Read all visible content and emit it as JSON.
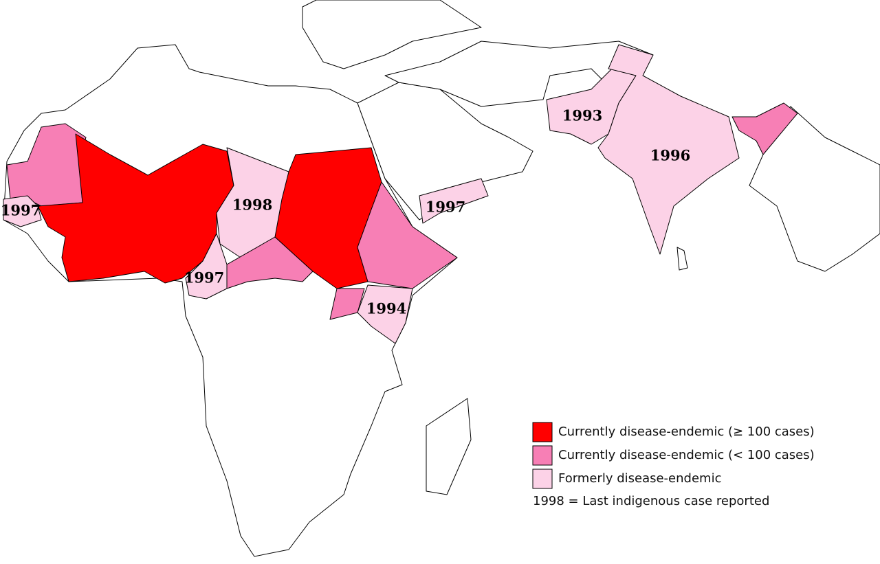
{
  "map_labels": [
    "1997",
    "1998",
    "1997",
    "1997",
    "1994",
    "1993",
    "1996"
  ],
  "legend": {
    "items": [
      {
        "label": "Currently disease-endemic (≥ 100 cases)",
        "color": "#ff0000"
      },
      {
        "label": "Currently disease-endemic (< 100 cases)",
        "color": "#f77fb5"
      },
      {
        "label": "Formerly disease-endemic",
        "color": "#fcd2e7"
      }
    ],
    "note": "1998 = Last indigenous case reported"
  }
}
